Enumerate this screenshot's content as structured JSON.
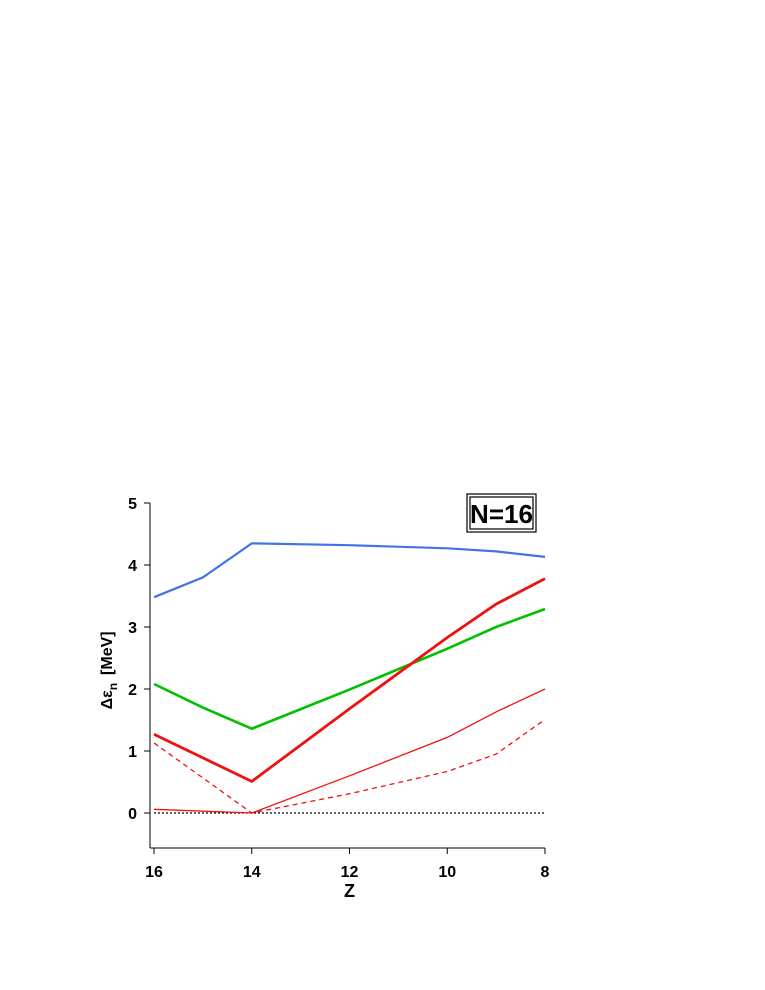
{
  "chart_data": {
    "type": "line",
    "xlabel": "Z",
    "ylabel": {
      "main": "Δε",
      "sub": "n",
      "unit": "[MeV]"
    },
    "xlim": [
      16,
      8
    ],
    "ylim": [
      -0.55,
      5
    ],
    "x_ticks": [
      16,
      14,
      12,
      10,
      8
    ],
    "y_ticks": [
      0,
      1,
      2,
      3,
      4,
      5
    ],
    "annotation": "N=16",
    "reference_line": {
      "y": 0,
      "style": "dotted",
      "color": "#000000"
    },
    "series": [
      {
        "color": "#4472e8",
        "width": 2.2,
        "dash": "none",
        "x": [
          16,
          15,
          14,
          12,
          10,
          9,
          8
        ],
        "y": [
          3.48,
          3.8,
          4.35,
          4.32,
          4.27,
          4.22,
          4.13
        ]
      },
      {
        "color": "#00c000",
        "width": 2.6,
        "dash": "none",
        "x": [
          16,
          15,
          14,
          12,
          10,
          9,
          8
        ],
        "y": [
          2.08,
          1.7,
          1.36,
          1.99,
          2.65,
          3.0,
          3.29
        ]
      },
      {
        "color": "#ee1111",
        "width": 2.8,
        "dash": "none",
        "x": [
          16,
          14,
          12,
          10,
          9,
          8
        ],
        "y": [
          1.27,
          0.51,
          1.68,
          2.83,
          3.37,
          3.78
        ]
      },
      {
        "color": "#ee1111",
        "width": 1.3,
        "dash": "none",
        "x": [
          16,
          14,
          12,
          10,
          9,
          8
        ],
        "y": [
          0.06,
          0.0,
          0.6,
          1.22,
          1.63,
          2.0
        ]
      },
      {
        "color": "#ee1111",
        "width": 1.3,
        "dash": "5,4",
        "x": [
          16,
          14,
          12,
          10,
          9,
          8
        ],
        "y": [
          1.13,
          0.0,
          0.31,
          0.67,
          0.95,
          1.51
        ]
      }
    ]
  }
}
